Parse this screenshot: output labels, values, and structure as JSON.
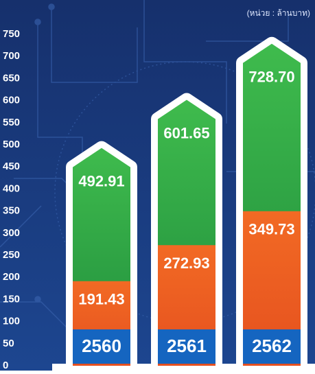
{
  "chart_data": {
    "type": "arrow-bar",
    "subtitle": "(หน่วย : ล้านบาท)",
    "categories": [
      "2560",
      "2561",
      "2562"
    ],
    "series": [
      {
        "color": "#2fae49",
        "values": [
          492.91,
          601.65,
          728.7
        ],
        "value_labels": [
          "492.91",
          "601.65",
          "728.70"
        ]
      },
      {
        "color": "#ee5a24",
        "values": [
          191.43,
          272.93,
          349.73
        ],
        "value_labels": [
          "191.43",
          "272.93",
          "349.73"
        ]
      }
    ],
    "category_color": "#1565c0",
    "ylim": [
      0,
      750
    ],
    "yticks": [
      0,
      50,
      100,
      150,
      200,
      250,
      300,
      350,
      400,
      450,
      500,
      550,
      600,
      650,
      700,
      750
    ]
  }
}
